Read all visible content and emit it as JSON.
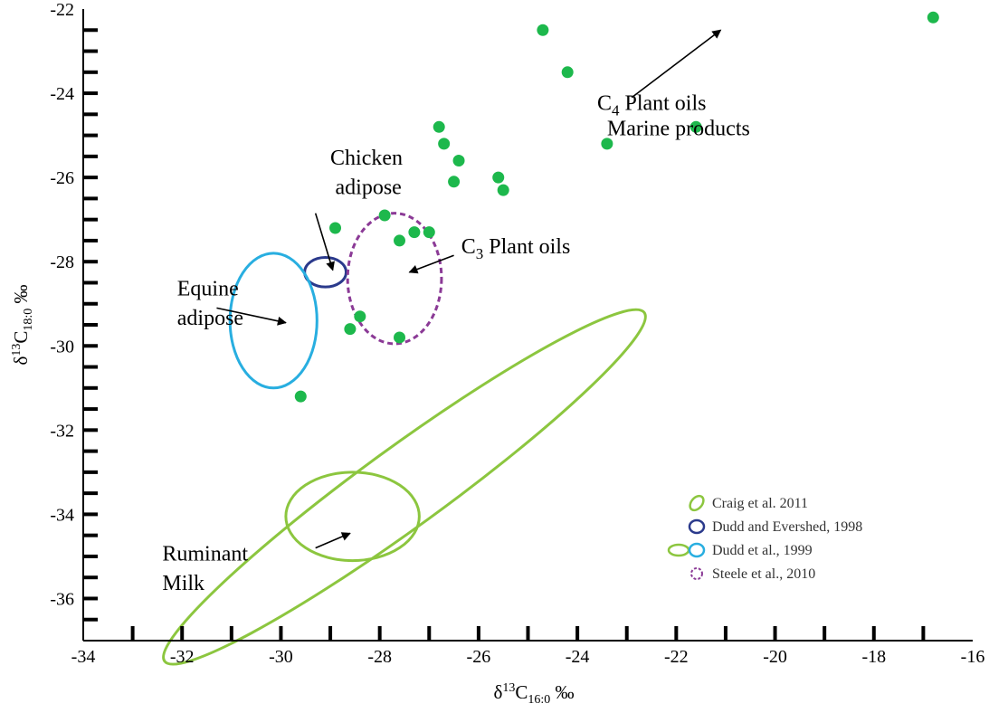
{
  "chart_data": {
    "type": "scatter",
    "xlabel": "δ13C16:0 ‰",
    "ylabel": "δ13C18:0 ‰",
    "xlim": [
      -34,
      -16
    ],
    "ylim": [
      -37,
      -22
    ],
    "x_ticks": [
      -34,
      -32,
      -30,
      -28,
      -26,
      -24,
      -22,
      -20,
      -18,
      -16
    ],
    "y_ticks": [
      -36,
      -34,
      -32,
      -30,
      -28,
      -26,
      -24,
      -22
    ],
    "grid": false,
    "colors": {
      "points": "#1db84c",
      "craig": "#8cc63f",
      "dudd_evershed": "#2b3a8c",
      "dudd_1999": "#28aee0",
      "steele": "#8b3a96"
    },
    "points": [
      {
        "x": -24.7,
        "y": -22.5
      },
      {
        "x": -24.2,
        "y": -23.5
      },
      {
        "x": -16.8,
        "y": -22.2
      },
      {
        "x": -26.8,
        "y": -24.8
      },
      {
        "x": -26.7,
        "y": -25.2
      },
      {
        "x": -26.4,
        "y": -25.6
      },
      {
        "x": -26.5,
        "y": -26.1
      },
      {
        "x": -25.6,
        "y": -26.0
      },
      {
        "x": -25.5,
        "y": -26.3
      },
      {
        "x": -23.4,
        "y": -25.2
      },
      {
        "x": -21.6,
        "y": -24.8
      },
      {
        "x": -27.9,
        "y": -26.9
      },
      {
        "x": -28.9,
        "y": -27.2
      },
      {
        "x": -27.6,
        "y": -27.5
      },
      {
        "x": -27.3,
        "y": -27.3
      },
      {
        "x": -27.0,
        "y": -27.3
      },
      {
        "x": -28.4,
        "y": -29.3
      },
      {
        "x": -28.6,
        "y": -29.6
      },
      {
        "x": -27.6,
        "y": -29.8
      },
      {
        "x": -29.6,
        "y": -31.2
      }
    ],
    "regions": [
      {
        "id": "ruminant-outer",
        "source": "craig",
        "cx": -27.5,
        "cy": -33.35,
        "rx": 6.0,
        "ry": 0.95,
        "rotate": -36,
        "style": "solid"
      },
      {
        "id": "ruminant-inner",
        "source": "craig",
        "cx": -28.55,
        "cy": -34.05,
        "rx": 1.35,
        "ry": 1.05,
        "rotate": 0,
        "style": "solid"
      },
      {
        "id": "chicken",
        "source": "dudd_evershed",
        "cx": -29.1,
        "cy": -28.25,
        "rx": 0.42,
        "ry": 0.35,
        "rotate": 0,
        "style": "solid"
      },
      {
        "id": "equine",
        "source": "dudd_1999",
        "cx": -30.15,
        "cy": -29.4,
        "rx": 0.88,
        "ry": 1.6,
        "rotate": 0,
        "style": "solid"
      },
      {
        "id": "c3-oils",
        "source": "steele",
        "cx": -27.7,
        "cy": -28.4,
        "rx": 0.95,
        "ry": 1.55,
        "rotate": 0,
        "style": "dashed"
      }
    ],
    "annotations": [
      {
        "id": "c4-oils",
        "parts": [
          {
            "t": "C"
          },
          {
            "t": "4",
            "sub": true
          },
          {
            "t": " Plant oils"
          }
        ],
        "x": -23.6,
        "y": -24.4
      },
      {
        "id": "marine",
        "parts": [
          {
            "t": "Marine products"
          }
        ],
        "x": -23.4,
        "y": -25.0
      },
      {
        "id": "chicken-label-1",
        "parts": [
          {
            "t": "Chicken"
          }
        ],
        "x": -29.0,
        "y": -25.7
      },
      {
        "id": "chicken-label-2",
        "parts": [
          {
            "t": "adipose"
          }
        ],
        "x": -28.9,
        "y": -26.4
      },
      {
        "id": "c3-label",
        "parts": [
          {
            "t": "C"
          },
          {
            "t": "3",
            "sub": true
          },
          {
            "t": "  Plant oils"
          }
        ],
        "x": -26.35,
        "y": -27.8
      },
      {
        "id": "equine-label-1",
        "parts": [
          {
            "t": "Equine"
          }
        ],
        "x": -32.1,
        "y": -28.8
      },
      {
        "id": "equine-label-2",
        "parts": [
          {
            "t": "adipose"
          }
        ],
        "x": -32.1,
        "y": -29.5
      },
      {
        "id": "ruminant-label-1",
        "parts": [
          {
            "t": "Ruminant"
          }
        ],
        "x": -32.4,
        "y": -35.1
      },
      {
        "id": "ruminant-label-2",
        "parts": [
          {
            "t": "Milk"
          }
        ],
        "x": -32.4,
        "y": -35.8
      }
    ],
    "arrows": [
      {
        "id": "c4-arrow",
        "from": [
          -22.9,
          -24.1
        ],
        "to": [
          -21.1,
          -22.5
        ]
      },
      {
        "id": "chicken-arrow",
        "from": [
          -29.3,
          -26.85
        ],
        "to": [
          -28.95,
          -28.2
        ]
      },
      {
        "id": "c3-arrow",
        "from": [
          -26.5,
          -27.85
        ],
        "to": [
          -27.4,
          -28.25
        ]
      },
      {
        "id": "equine-arrow",
        "from": [
          -31.3,
          -29.1
        ],
        "to": [
          -29.9,
          -29.45
        ]
      },
      {
        "id": "ruminant-arrow",
        "from": [
          -29.3,
          -34.8
        ],
        "to": [
          -28.6,
          -34.45
        ]
      }
    ],
    "legend": {
      "placement": "bottom-right",
      "items": [
        {
          "label": "Craig et al. 2011",
          "source": "craig"
        },
        {
          "label": "Dudd and Evershed, 1998",
          "source": "dudd_evershed"
        },
        {
          "label": "Dudd et al., 1999",
          "source": "dudd_1999",
          "extra": "craig"
        },
        {
          "label": "Steele et al., 2010",
          "source": "steele"
        }
      ]
    }
  }
}
